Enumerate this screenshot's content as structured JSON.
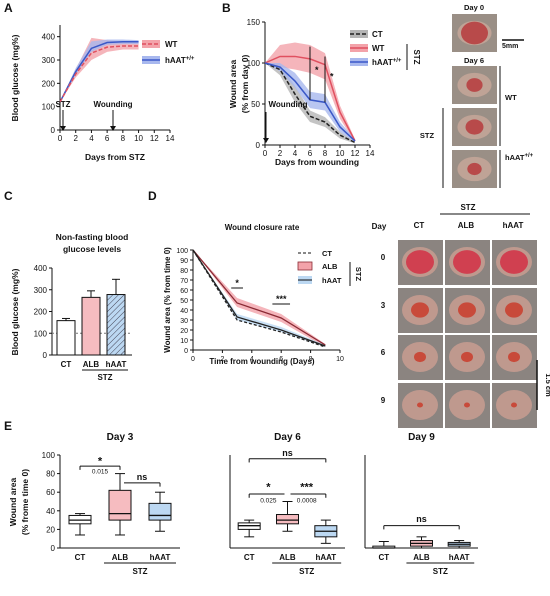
{
  "panel_letters": {
    "A": "A",
    "B": "B",
    "C": "C",
    "D": "D",
    "E": "E"
  },
  "colors": {
    "ct": "#222222",
    "wt": "#e05060",
    "wt_band": "#f3a3aa",
    "haat": "#3a58c8",
    "haat_band": "#a8b8ee",
    "ct_band": "#b5b5b5",
    "alb_fill": "#f6bcc0",
    "haat_fill": "#bcd8f2",
    "photo_red": "#b84a4a"
  },
  "chart_data": [
    {
      "id": "A",
      "type": "line",
      "xlabel": "Days from STZ",
      "ylabel": "Blood glucose (mg%)",
      "xlim": [
        0,
        14
      ],
      "ylim": [
        0,
        450
      ],
      "x_ticks": [
        "0",
        "2",
        "4",
        "6",
        "8",
        "10",
        "12",
        "14"
      ],
      "y_ticks": [
        "0",
        "100",
        "200",
        "300",
        "400"
      ],
      "annotations": [
        "STZ",
        "Wounding"
      ],
      "series": [
        {
          "name": "WT",
          "x": [
            0,
            2,
            4,
            6,
            8,
            10
          ],
          "y": [
            120,
            240,
            330,
            355,
            360,
            360
          ],
          "lo": [
            120,
            225,
            300,
            335,
            345,
            345
          ],
          "hi": [
            120,
            260,
            395,
            385,
            378,
            375
          ]
        },
        {
          "name": "hAAT+/+",
          "x": [
            0,
            2,
            4,
            6,
            8,
            10
          ],
          "y": [
            120,
            250,
            350,
            375,
            378,
            378
          ],
          "lo": [
            120,
            235,
            335,
            365,
            368,
            368
          ],
          "hi": [
            120,
            265,
            380,
            388,
            388,
            385
          ]
        }
      ]
    },
    {
      "id": "B",
      "type": "line",
      "xlabel": "Days from wounding",
      "ylabel": "Wound area\n(% from day 0)",
      "xlim": [
        0,
        14
      ],
      "ylim": [
        0,
        150
      ],
      "x_ticks": [
        "0",
        "2",
        "4",
        "6",
        "8",
        "10",
        "12",
        "14"
      ],
      "y_ticks": [
        "0",
        "50",
        "100",
        "150"
      ],
      "annotations": [
        "Wounding",
        "STZ",
        "*",
        "*"
      ],
      "series": [
        {
          "name": "CT",
          "x": [
            0,
            2,
            4,
            6,
            8,
            10,
            12
          ],
          "y": [
            100,
            92,
            62,
            35,
            28,
            12,
            3
          ],
          "lo": [
            100,
            85,
            52,
            28,
            22,
            8,
            2
          ],
          "hi": [
            100,
            98,
            72,
            42,
            34,
            16,
            4
          ]
        },
        {
          "name": "WT",
          "x": [
            0,
            2,
            4,
            6,
            8,
            10,
            12
          ],
          "y": [
            100,
            108,
            108,
            105,
            98,
            40,
            5
          ],
          "lo": [
            100,
            95,
            92,
            88,
            80,
            32,
            3
          ],
          "hi": [
            100,
            122,
            125,
            122,
            112,
            48,
            7
          ]
        },
        {
          "name": "hAAT+/+",
          "x": [
            0,
            2,
            4,
            6,
            8,
            10,
            12
          ],
          "y": [
            100,
            95,
            78,
            55,
            52,
            22,
            5
          ],
          "lo": [
            100,
            90,
            70,
            45,
            42,
            16,
            3
          ],
          "hi": [
            100,
            100,
            88,
            65,
            62,
            28,
            7
          ]
        }
      ]
    },
    {
      "id": "C",
      "type": "bar",
      "title": "Non-fasting blood\nglucose levels",
      "ylabel": "Blood glucose (mg%)",
      "ylim": [
        0,
        400
      ],
      "y_ticks": [
        "0",
        "100",
        "200",
        "300",
        "400"
      ],
      "categories": [
        "CT",
        "ALB",
        "hAAT"
      ],
      "group_label": "STZ",
      "values": [
        158,
        265,
        278
      ],
      "errors": [
        10,
        30,
        70
      ],
      "reference": 100
    },
    {
      "id": "D",
      "type": "line",
      "title": "Wound closure rate",
      "xlabel": "Time from wounding (Days)",
      "ylabel": "Wound area (% from time 0)",
      "xlim": [
        0,
        10
      ],
      "ylim": [
        0,
        100
      ],
      "x_ticks": [
        "0",
        "2",
        "4",
        "6",
        "8",
        "10"
      ],
      "y_ticks": [
        "0",
        "10",
        "20",
        "30",
        "40",
        "50",
        "60",
        "70",
        "80",
        "90",
        "100"
      ],
      "annotations": [
        "*",
        "***",
        "STZ"
      ],
      "series": [
        {
          "name": "CT",
          "x": [
            0,
            3,
            6,
            9
          ],
          "y": [
            100,
            30,
            18,
            3
          ],
          "lo": [
            100,
            28,
            16,
            2
          ],
          "hi": [
            100,
            32,
            20,
            4
          ]
        },
        {
          "name": "ALB",
          "x": [
            0,
            3,
            6,
            9
          ],
          "y": [
            100,
            47,
            32,
            5
          ],
          "lo": [
            100,
            43,
            28,
            3
          ],
          "hi": [
            100,
            52,
            36,
            6
          ]
        },
        {
          "name": "hAAT",
          "x": [
            0,
            3,
            6,
            9
          ],
          "y": [
            100,
            33,
            20,
            4
          ],
          "lo": [
            100,
            30,
            18,
            3
          ],
          "hi": [
            100,
            36,
            23,
            5
          ]
        }
      ]
    },
    {
      "id": "E",
      "type": "box",
      "ylabel": "Wound area\n(% frome time 0)",
      "ylim": [
        0,
        100
      ],
      "y_ticks": [
        "0",
        "20",
        "40",
        "60",
        "80",
        "100"
      ],
      "categories": [
        "CT",
        "ALB",
        "hAAT"
      ],
      "group_label": "STZ",
      "subplots": [
        {
          "title": "Day 3",
          "boxes": [
            {
              "min": 14,
              "q1": 26,
              "med": 30,
              "q3": 35,
              "max": 37
            },
            {
              "min": 14,
              "q1": 30,
              "med": 37,
              "q3": 62,
              "max": 80
            },
            {
              "min": 18,
              "q1": 30,
              "med": 35,
              "q3": 48,
              "max": 60
            }
          ],
          "annotations": [
            "*",
            "0.015",
            "ns"
          ]
        },
        {
          "title": "Day 6",
          "boxes": [
            {
              "min": 12,
              "q1": 20,
              "med": 24,
              "q3": 27,
              "max": 30
            },
            {
              "min": 18,
              "q1": 26,
              "med": 30,
              "q3": 36,
              "max": 50
            },
            {
              "min": 5,
              "q1": 12,
              "med": 18,
              "q3": 24,
              "max": 30
            }
          ],
          "annotations": [
            "ns",
            "*",
            "***",
            "0.025",
            "0.0008"
          ]
        },
        {
          "title": "Day 9",
          "boxes": [
            {
              "min": 0,
              "q1": 0,
              "med": 0,
              "q3": 2,
              "max": 7
            },
            {
              "min": 0,
              "q1": 2,
              "med": 5,
              "q3": 8,
              "max": 12
            },
            {
              "min": 0,
              "q1": 2,
              "med": 4,
              "q3": 6,
              "max": 8
            }
          ],
          "annotations": [
            "ns"
          ]
        }
      ]
    }
  ],
  "photos_B": {
    "labels": [
      "Day 0",
      "Day 6",
      "WT",
      "hAAT+/+",
      "STZ"
    ],
    "scale": "5mm"
  },
  "photos_D": {
    "group": "STZ",
    "corner": "Day",
    "columns": [
      "CT",
      "ALB",
      "hAAT"
    ],
    "rows": [
      "0",
      "3",
      "6",
      "9"
    ],
    "scale": "1.5 cm"
  }
}
